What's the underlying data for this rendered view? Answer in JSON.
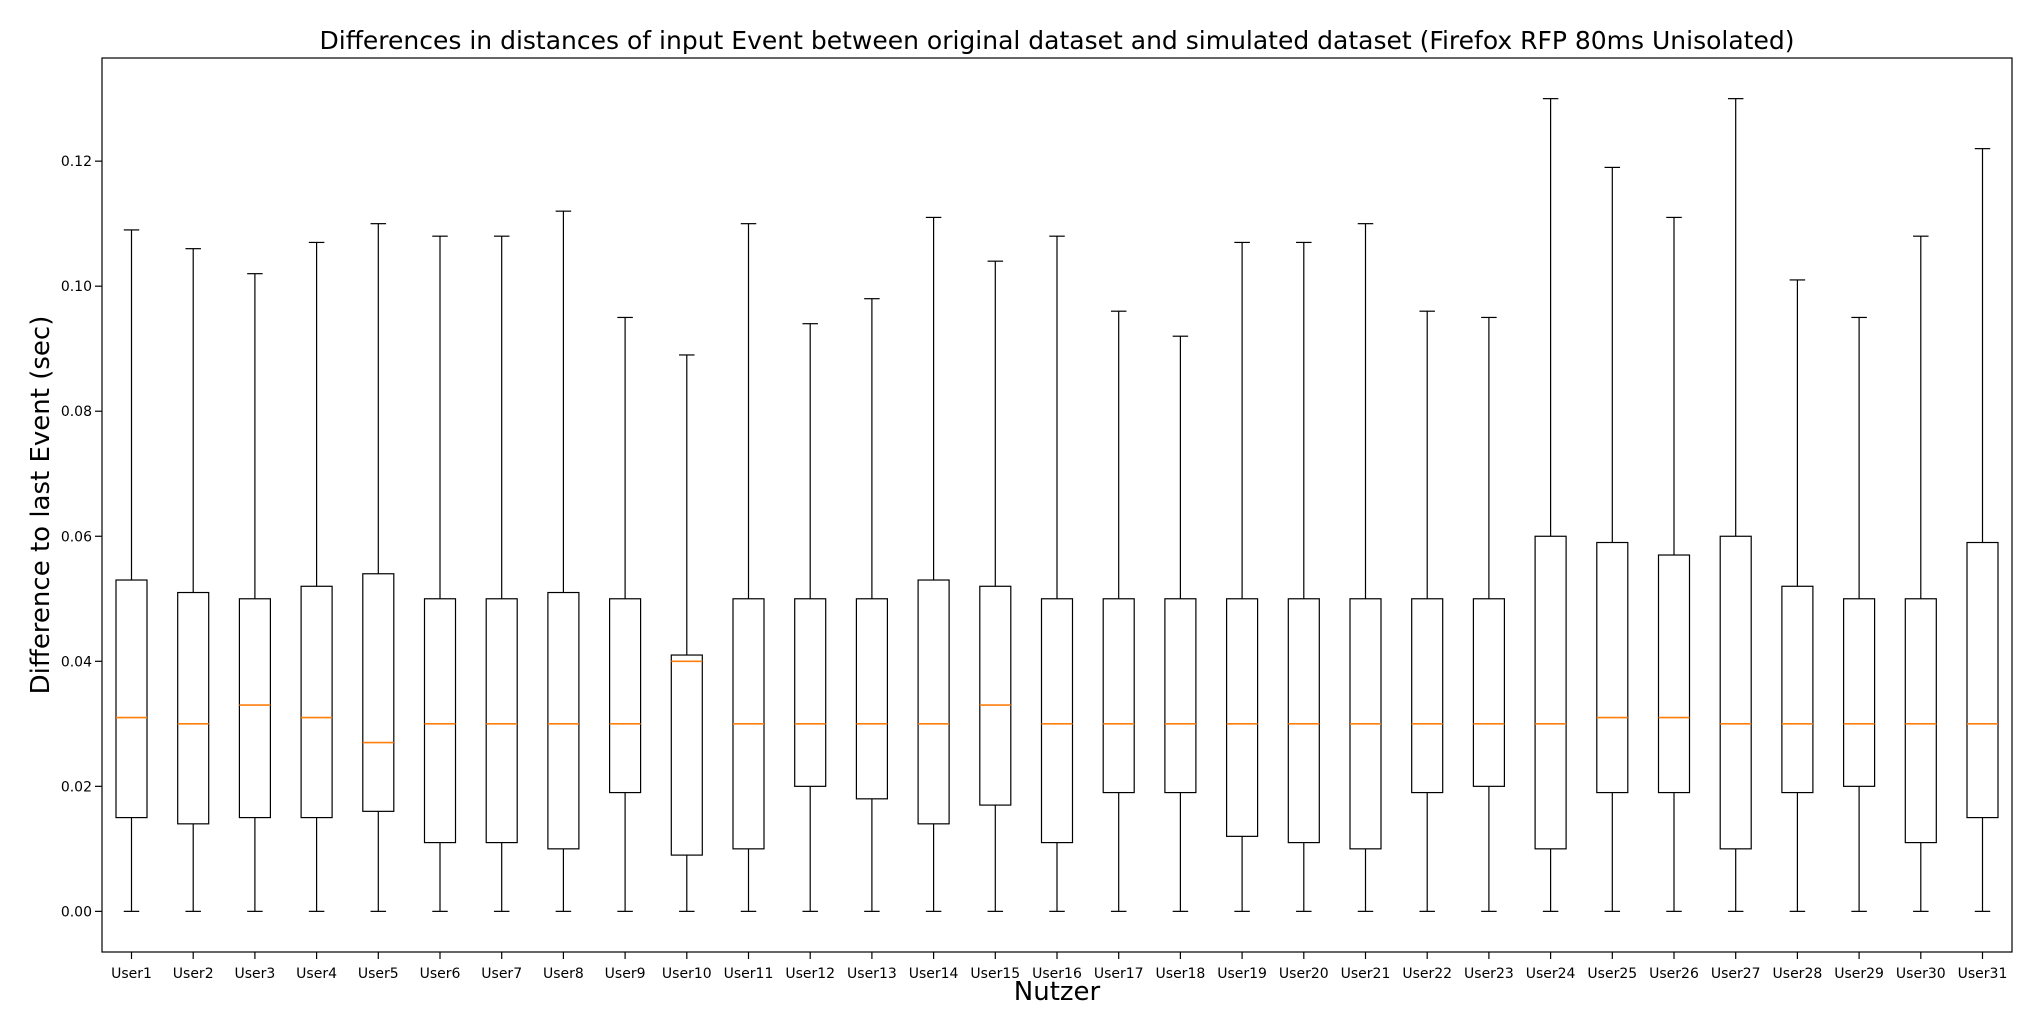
{
  "chart_data": {
    "type": "boxplot",
    "title": "Differences in distances of input Event between original dataset and simulated dataset (Firefox RFP 80ms Unisolated)",
    "xlabel": "Nutzer",
    "ylabel": "Difference to last Event (sec)",
    "ylim": [
      -0.0065,
      0.1365
    ],
    "yticks": [
      0.0,
      0.02,
      0.04,
      0.06,
      0.08,
      0.1,
      0.12
    ],
    "ytick_labels": [
      "0.00",
      "0.02",
      "0.04",
      "0.06",
      "0.08",
      "0.10",
      "0.12"
    ],
    "grid": false,
    "categories": [
      "User1",
      "User2",
      "User3",
      "User4",
      "User5",
      "User6",
      "User7",
      "User8",
      "User9",
      "User10",
      "User11",
      "User12",
      "User13",
      "User14",
      "User15",
      "User16",
      "User17",
      "User18",
      "User19",
      "User20",
      "User21",
      "User22",
      "User23",
      "User24",
      "User25",
      "User26",
      "User27",
      "User28",
      "User29",
      "User30",
      "User31"
    ],
    "series": [
      {
        "whisker_low": 0.0,
        "q1": 0.015,
        "median": 0.031,
        "q3": 0.053,
        "whisker_high": 0.109
      },
      {
        "whisker_low": 0.0,
        "q1": 0.014,
        "median": 0.03,
        "q3": 0.051,
        "whisker_high": 0.106
      },
      {
        "whisker_low": 0.0,
        "q1": 0.015,
        "median": 0.033,
        "q3": 0.05,
        "whisker_high": 0.102
      },
      {
        "whisker_low": 0.0,
        "q1": 0.015,
        "median": 0.031,
        "q3": 0.052,
        "whisker_high": 0.107
      },
      {
        "whisker_low": 0.0,
        "q1": 0.016,
        "median": 0.027,
        "q3": 0.054,
        "whisker_high": 0.11
      },
      {
        "whisker_low": 0.0,
        "q1": 0.011,
        "median": 0.03,
        "q3": 0.05,
        "whisker_high": 0.108
      },
      {
        "whisker_low": 0.0,
        "q1": 0.011,
        "median": 0.03,
        "q3": 0.05,
        "whisker_high": 0.108
      },
      {
        "whisker_low": 0.0,
        "q1": 0.01,
        "median": 0.03,
        "q3": 0.051,
        "whisker_high": 0.112
      },
      {
        "whisker_low": 0.0,
        "q1": 0.019,
        "median": 0.03,
        "q3": 0.05,
        "whisker_high": 0.095
      },
      {
        "whisker_low": 0.0,
        "q1": 0.009,
        "median": 0.04,
        "q3": 0.041,
        "whisker_high": 0.089
      },
      {
        "whisker_low": 0.0,
        "q1": 0.01,
        "median": 0.03,
        "q3": 0.05,
        "whisker_high": 0.11
      },
      {
        "whisker_low": 0.0,
        "q1": 0.02,
        "median": 0.03,
        "q3": 0.05,
        "whisker_high": 0.094
      },
      {
        "whisker_low": 0.0,
        "q1": 0.018,
        "median": 0.03,
        "q3": 0.05,
        "whisker_high": 0.098
      },
      {
        "whisker_low": 0.0,
        "q1": 0.014,
        "median": 0.03,
        "q3": 0.053,
        "whisker_high": 0.111
      },
      {
        "whisker_low": 0.0,
        "q1": 0.017,
        "median": 0.033,
        "q3": 0.052,
        "whisker_high": 0.104
      },
      {
        "whisker_low": 0.0,
        "q1": 0.011,
        "median": 0.03,
        "q3": 0.05,
        "whisker_high": 0.108
      },
      {
        "whisker_low": 0.0,
        "q1": 0.019,
        "median": 0.03,
        "q3": 0.05,
        "whisker_high": 0.096
      },
      {
        "whisker_low": 0.0,
        "q1": 0.019,
        "median": 0.03,
        "q3": 0.05,
        "whisker_high": 0.092
      },
      {
        "whisker_low": 0.0,
        "q1": 0.012,
        "median": 0.03,
        "q3": 0.05,
        "whisker_high": 0.107
      },
      {
        "whisker_low": 0.0,
        "q1": 0.011,
        "median": 0.03,
        "q3": 0.05,
        "whisker_high": 0.107
      },
      {
        "whisker_low": 0.0,
        "q1": 0.01,
        "median": 0.03,
        "q3": 0.05,
        "whisker_high": 0.11
      },
      {
        "whisker_low": 0.0,
        "q1": 0.019,
        "median": 0.03,
        "q3": 0.05,
        "whisker_high": 0.096
      },
      {
        "whisker_low": 0.0,
        "q1": 0.02,
        "median": 0.03,
        "q3": 0.05,
        "whisker_high": 0.095
      },
      {
        "whisker_low": 0.0,
        "q1": 0.01,
        "median": 0.03,
        "q3": 0.06,
        "whisker_high": 0.13
      },
      {
        "whisker_low": 0.0,
        "q1": 0.019,
        "median": 0.031,
        "q3": 0.059,
        "whisker_high": 0.119
      },
      {
        "whisker_low": 0.0,
        "q1": 0.019,
        "median": 0.031,
        "q3": 0.057,
        "whisker_high": 0.111
      },
      {
        "whisker_low": 0.0,
        "q1": 0.01,
        "median": 0.03,
        "q3": 0.06,
        "whisker_high": 0.13
      },
      {
        "whisker_low": 0.0,
        "q1": 0.019,
        "median": 0.03,
        "q3": 0.052,
        "whisker_high": 0.101
      },
      {
        "whisker_low": 0.0,
        "q1": 0.02,
        "median": 0.03,
        "q3": 0.05,
        "whisker_high": 0.095
      },
      {
        "whisker_low": 0.0,
        "q1": 0.011,
        "median": 0.03,
        "q3": 0.05,
        "whisker_high": 0.108
      },
      {
        "whisker_low": 0.0,
        "q1": 0.015,
        "median": 0.03,
        "q3": 0.059,
        "whisker_high": 0.122
      }
    ],
    "colors": {
      "box": "#000000",
      "median": "#ff7f0e"
    }
  }
}
